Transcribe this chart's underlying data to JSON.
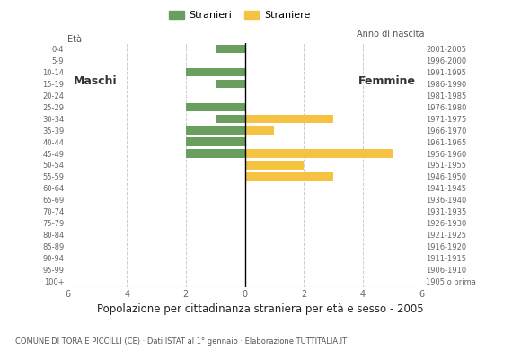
{
  "age_groups": [
    "100+",
    "95-99",
    "90-94",
    "85-89",
    "80-84",
    "75-79",
    "70-74",
    "65-69",
    "60-64",
    "55-59",
    "50-54",
    "45-49",
    "40-44",
    "35-39",
    "30-34",
    "25-29",
    "20-24",
    "15-19",
    "10-14",
    "5-9",
    "0-4"
  ],
  "birth_years": [
    "1905 o prima",
    "1906-1910",
    "1911-1915",
    "1916-1920",
    "1921-1925",
    "1926-1930",
    "1931-1935",
    "1936-1940",
    "1941-1945",
    "1946-1950",
    "1951-1955",
    "1956-1960",
    "1961-1965",
    "1966-1970",
    "1971-1975",
    "1976-1980",
    "1981-1985",
    "1986-1990",
    "1991-1995",
    "1996-2000",
    "2001-2005"
  ],
  "males": [
    0,
    0,
    0,
    0,
    0,
    0,
    0,
    0,
    0,
    0,
    0,
    2,
    2,
    2,
    1,
    2,
    0,
    1,
    2,
    0,
    1
  ],
  "females": [
    0,
    0,
    0,
    0,
    0,
    0,
    0,
    0,
    0,
    3,
    2,
    5,
    0,
    1,
    3,
    0,
    0,
    0,
    0,
    0,
    0
  ],
  "male_color": "#6a9e5f",
  "female_color": "#f5c242",
  "title": "Popolazione per cittadinanza straniera per età e sesso - 2005",
  "subtitle": "COMUNE DI TORA E PICCILLI (CE) · Dati ISTAT al 1° gennaio · Elaborazione TUTTITALIA.IT",
  "legend_male": "Stranieri",
  "legend_female": "Straniere",
  "label_eta": "Età",
  "label_anno": "Anno di nascita",
  "label_maschi": "Maschi",
  "label_femmine": "Femmine",
  "xlim": 6,
  "background_color": "#ffffff",
  "grid_color": "#cccccc",
  "spine_color": "#bbbbbb"
}
